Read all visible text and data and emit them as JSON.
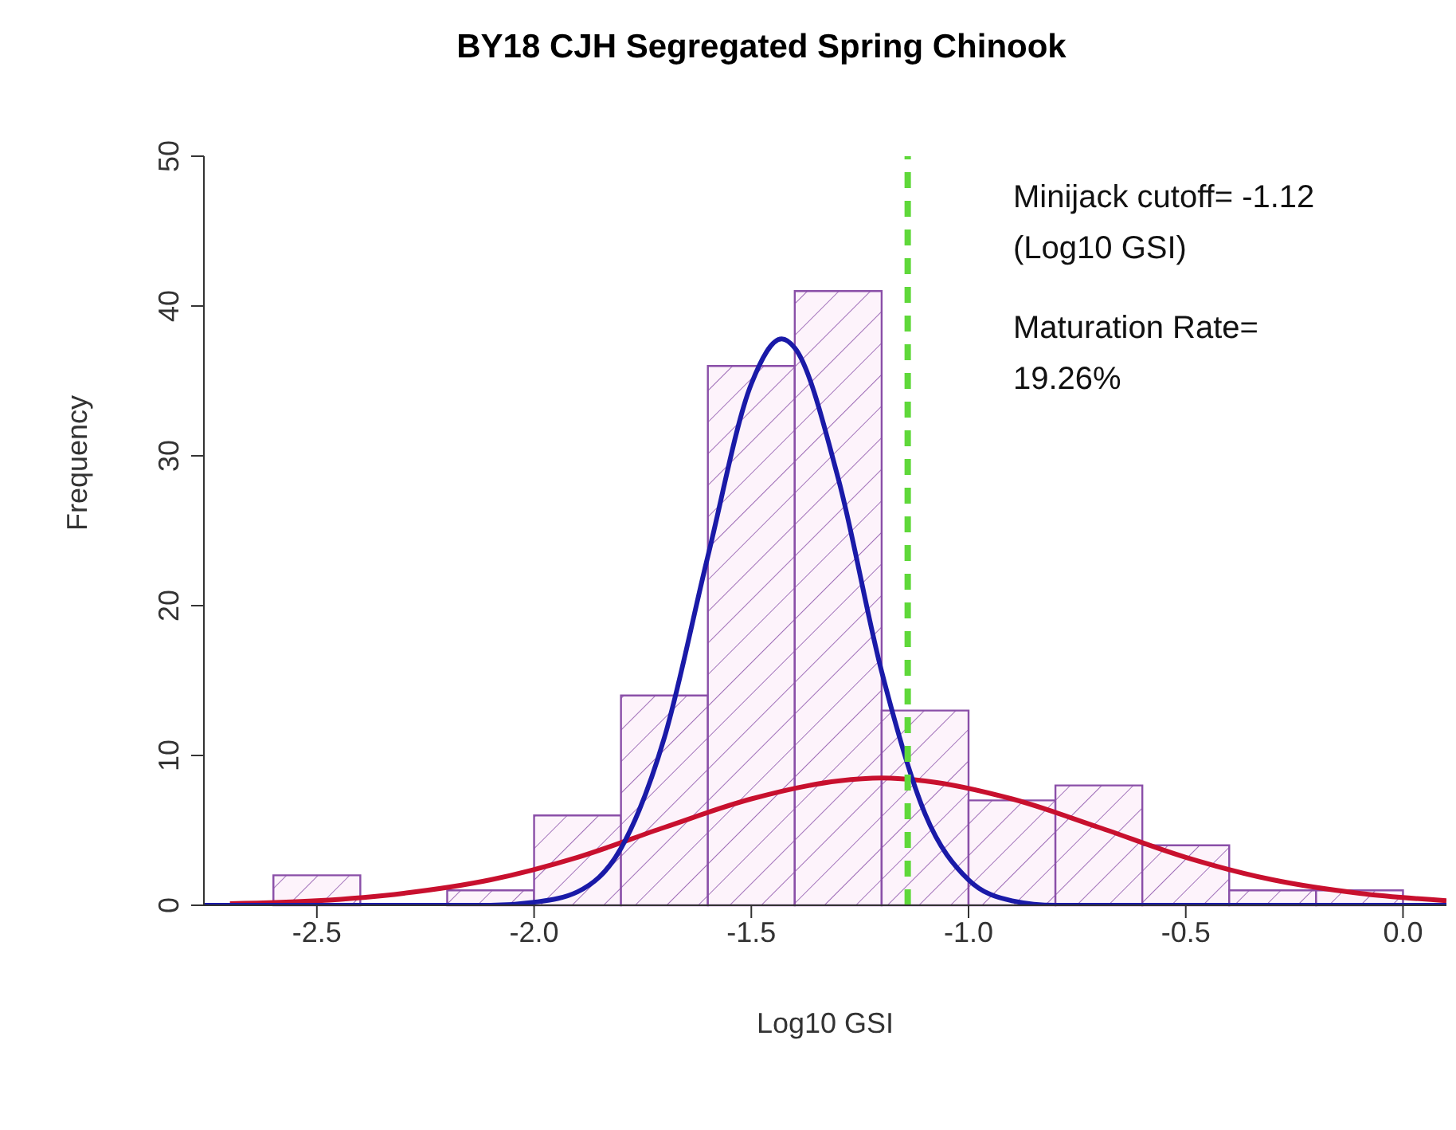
{
  "chart_data": {
    "type": "histogram",
    "title": "BY18 CJH Segregated Spring Chinook",
    "xlabel": "Log10 GSI",
    "ylabel": "Frequency",
    "bins": [
      -2.6,
      -2.4,
      -2.2,
      -2.0,
      -1.8,
      -1.6,
      -1.4,
      -1.2,
      -1.0,
      -0.8,
      -0.6,
      -0.4,
      -0.2,
      0.0
    ],
    "values": [
      2,
      0,
      1,
      6,
      14,
      36,
      41,
      13,
      7,
      8,
      4,
      1,
      1
    ],
    "color": "#8a4fa8",
    "series": [
      {
        "type": "line",
        "color": "#c8102e",
        "x": [
          -2.7,
          -2.5,
          -2.3,
          -2.1,
          -1.9,
          -1.7,
          -1.5,
          -1.3,
          -1.2,
          -1.1,
          -0.9,
          -0.7,
          -0.5,
          -0.3,
          -0.1,
          0.1
        ],
        "values": [
          0.1,
          0.3,
          0.8,
          1.7,
          3.2,
          5.2,
          7.1,
          8.3,
          8.5,
          8.3,
          7.1,
          5.2,
          3.2,
          1.7,
          0.8,
          0.3
        ]
      },
      {
        "type": "line",
        "color": "#1a1aa8",
        "x": [
          -2.76,
          -2.1,
          -2.0,
          -1.9,
          -1.8,
          -1.7,
          -1.6,
          -1.5,
          -1.43,
          -1.4,
          -1.3,
          -1.2,
          -1.1,
          -1.0,
          -0.9,
          -0.8,
          0.1
        ],
        "values": [
          0,
          0,
          0.2,
          0.9,
          3.8,
          11.2,
          23.3,
          34.8,
          37.8,
          37.2,
          28.5,
          15.6,
          6.1,
          1.7,
          0.3,
          0,
          0
        ]
      }
    ],
    "xlim": [
      -2.76,
      0.1
    ],
    "xticks": [
      -2.5,
      {
        "value": -2,
        "label": "-2.0"
      },
      -1.5,
      {
        "value": -1,
        "label": "-1.0"
      },
      -0.5,
      {
        "value": 0,
        "label": "0.0"
      }
    ],
    "ylim": [
      0,
      50
    ],
    "yticks": [
      0,
      10,
      20,
      30,
      40,
      50
    ],
    "ref_lines": [
      {
        "axis": "x",
        "value": -1.14,
        "color": "#5fd83a",
        "line_style": "dashed"
      }
    ],
    "annotations": [
      "Minijack cutoff= -1.12",
      "(Log10 GSI)",
      "Maturation Rate=",
      "19.26%"
    ]
  }
}
